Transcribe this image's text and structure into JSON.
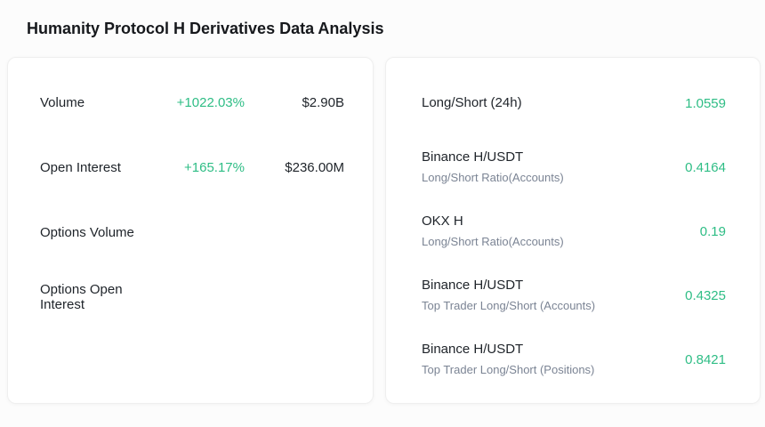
{
  "page_title": "Humanity Protocol H Derivatives Data Analysis",
  "colors": {
    "accent": "#2ebd85"
  },
  "left_card": {
    "rows": [
      {
        "label": "Volume",
        "change": "+1022.03%",
        "value": "$2.90B"
      },
      {
        "label": "Open Interest",
        "change": "+165.17%",
        "value": "$236.00M"
      },
      {
        "label": "Options Volume",
        "change": "",
        "value": ""
      },
      {
        "label": "Options Open Interest",
        "change": "",
        "value": ""
      }
    ]
  },
  "right_card": {
    "rows": [
      {
        "label": "Long/Short (24h)",
        "sublabel": "",
        "value": "1.0559"
      },
      {
        "label": "Binance H/USDT",
        "sublabel": "Long/Short Ratio(Accounts)",
        "value": "0.4164"
      },
      {
        "label": "OKX H",
        "sublabel": "Long/Short Ratio(Accounts)",
        "value": "0.19"
      },
      {
        "label": "Binance H/USDT",
        "sublabel": "Top Trader Long/Short (Accounts)",
        "value": "0.4325"
      },
      {
        "label": "Binance H/USDT",
        "sublabel": "Top Trader Long/Short (Positions)",
        "value": "0.8421"
      }
    ]
  }
}
